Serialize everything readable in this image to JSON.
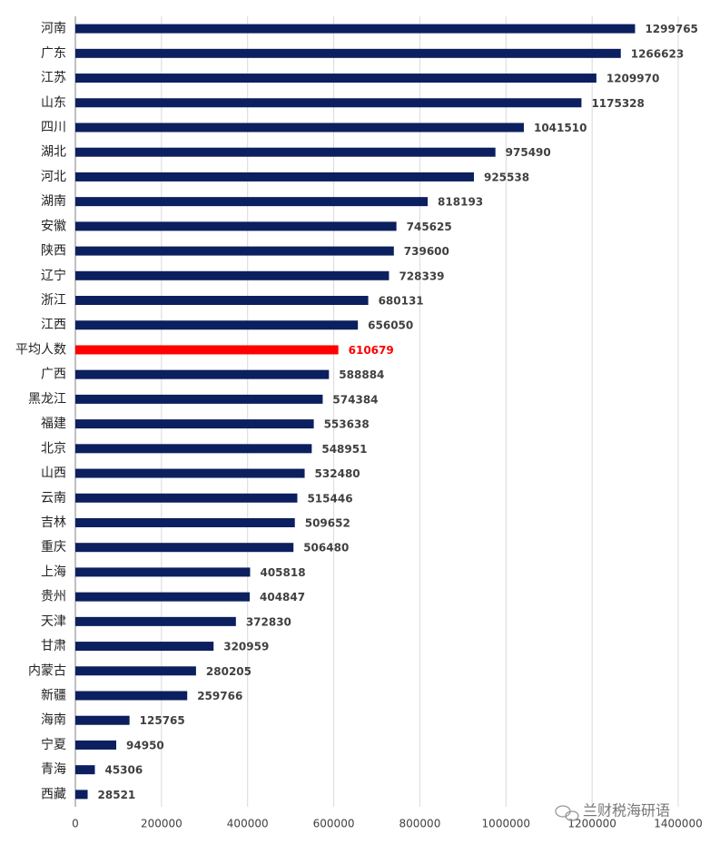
{
  "chart_data": {
    "type": "barh",
    "categories": [
      "河南",
      "广东",
      "江苏",
      "山东",
      "四川",
      "湖北",
      "河北",
      "湖南",
      "安徽",
      "陕西",
      "辽宁",
      "浙江",
      "江西",
      "平均人数",
      "广西",
      "黑龙江",
      "福建",
      "北京",
      "山西",
      "云南",
      "吉林",
      "重庆",
      "上海",
      "贵州",
      "天津",
      "甘肃",
      "内蒙古",
      "新疆",
      "海南",
      "宁夏",
      "青海",
      "西藏"
    ],
    "values": [
      1299765,
      1266623,
      1209970,
      1175328,
      1041510,
      975490,
      925538,
      818193,
      745625,
      739600,
      728339,
      680131,
      656050,
      610679,
      588884,
      574384,
      553638,
      548951,
      532480,
      515446,
      509652,
      506480,
      405818,
      404847,
      372830,
      320959,
      280205,
      259766,
      125765,
      94950,
      45306,
      28521
    ],
    "colors": [
      "#0c1f5e",
      "#0c1f5e",
      "#0c1f5e",
      "#0c1f5e",
      "#0c1f5e",
      "#0c1f5e",
      "#0c1f5e",
      "#0c1f5e",
      "#0c1f5e",
      "#0c1f5e",
      "#0c1f5e",
      "#0c1f5e",
      "#0c1f5e",
      "#ff0000",
      "#0c1f5e",
      "#0c1f5e",
      "#0c1f5e",
      "#0c1f5e",
      "#0c1f5e",
      "#0c1f5e",
      "#0c1f5e",
      "#0c1f5e",
      "#0c1f5e",
      "#0c1f5e",
      "#0c1f5e",
      "#0c1f5e",
      "#0c1f5e",
      "#0c1f5e",
      "#0c1f5e",
      "#0c1f5e",
      "#0c1f5e",
      "#0c1f5e"
    ],
    "label_colors": [
      "#404040",
      "#404040",
      "#404040",
      "#404040",
      "#404040",
      "#404040",
      "#404040",
      "#404040",
      "#404040",
      "#404040",
      "#404040",
      "#404040",
      "#404040",
      "#ff0000",
      "#404040",
      "#404040",
      "#404040",
      "#404040",
      "#404040",
      "#404040",
      "#404040",
      "#404040",
      "#404040",
      "#404040",
      "#404040",
      "#404040",
      "#404040",
      "#404040",
      "#404040",
      "#404040",
      "#404040",
      "#404040"
    ],
    "xlim": [
      0,
      1400000
    ],
    "xticks": [
      0,
      200000,
      400000,
      600000,
      800000,
      1000000,
      1200000,
      1400000
    ],
    "grid": true,
    "watermark": "兰财税海研语"
  }
}
